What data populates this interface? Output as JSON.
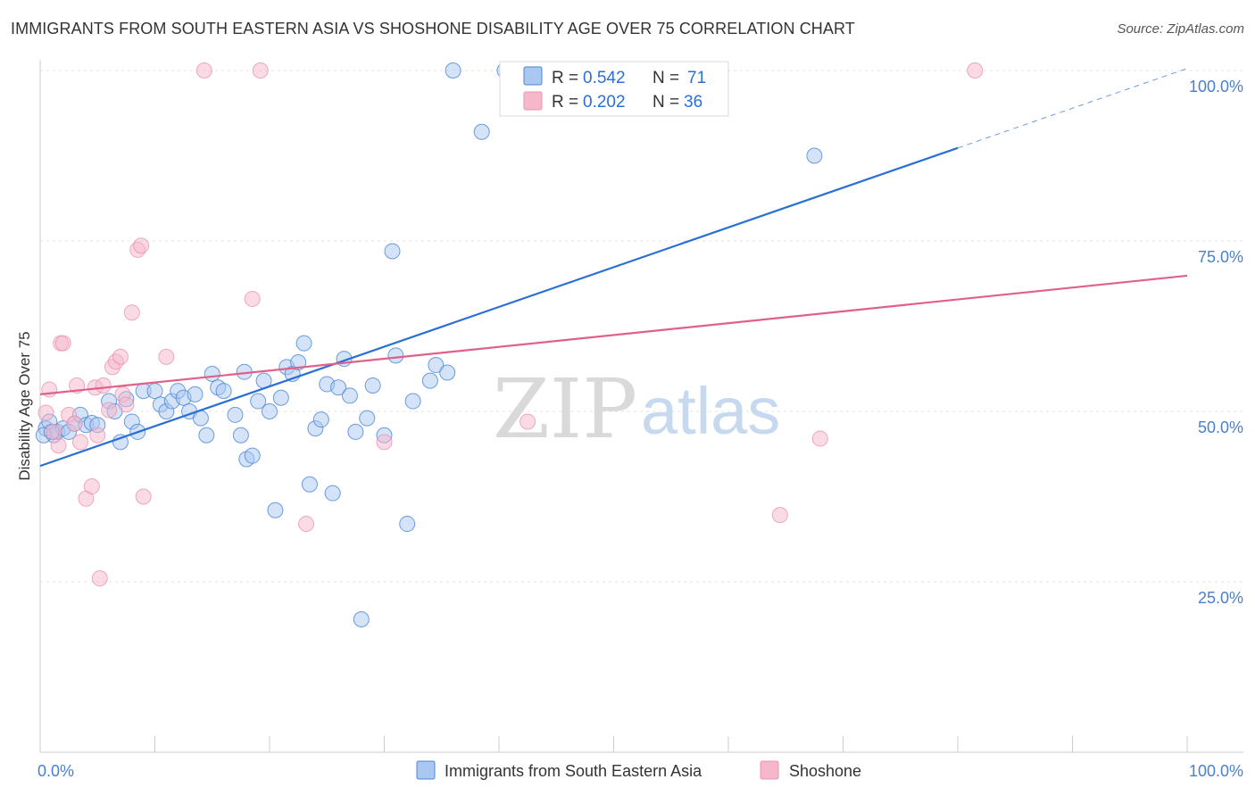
{
  "header": {
    "title": "IMMIGRANTS FROM SOUTH EASTERN ASIA VS SHOSHONE DISABILITY AGE OVER 75 CORRELATION CHART",
    "source": "Source: ZipAtlas.com"
  },
  "watermark": {
    "zip": "ZIP",
    "atlas": "atlas"
  },
  "legend": {
    "r_label": "R =",
    "n_label": "N =",
    "rows": [
      {
        "r": "0.542",
        "n": "71",
        "color": "#aac8ef"
      },
      {
        "r": "0.202",
        "n": "36",
        "color": "#f5b8cb"
      }
    ]
  },
  "chart_data": {
    "type": "scatter",
    "title": "IMMIGRANTS FROM SOUTH EASTERN ASIA VS SHOSHONE DISABILITY AGE OVER 75 CORRELATION CHART",
    "xlabel": "",
    "ylabel": "Disability Age Over 75",
    "xlim": [
      0,
      100
    ],
    "ylim": [
      0,
      100
    ],
    "x_tick_labels": [
      "0.0%",
      "100.0%"
    ],
    "y_tick_labels": [
      "25.0%",
      "50.0%",
      "75.0%",
      "100.0%"
    ],
    "y_ticks": [
      25,
      50,
      75,
      100
    ],
    "grid": true,
    "legend_position": "top-center",
    "series": [
      {
        "name": "Immigrants from South Eastern Asia",
        "color": "#4a86d8",
        "fill": "#aac8ef",
        "trend": {
          "r": 0.542,
          "n": 71,
          "x0": 0,
          "y0": 42.0,
          "x1": 100,
          "y1": 100.3,
          "solid_until_x": 80,
          "line_color": "#2a6fd6"
        },
        "points": [
          [
            0.5,
            47.5
          ],
          [
            0.8,
            48.5
          ],
          [
            1.2,
            46.5
          ],
          [
            1.5,
            47
          ],
          [
            2.0,
            47.5
          ],
          [
            2.5,
            47
          ],
          [
            3.0,
            48.2
          ],
          [
            3.5,
            49.5
          ],
          [
            4.0,
            48
          ],
          [
            4.5,
            48.3
          ],
          [
            5.0,
            48
          ],
          [
            6.0,
            51.5
          ],
          [
            6.5,
            50
          ],
          [
            7.0,
            45.5
          ],
          [
            7.5,
            51.8
          ],
          [
            8.0,
            48.5
          ],
          [
            8.5,
            47
          ],
          [
            9.0,
            53
          ],
          [
            10.0,
            53
          ],
          [
            10.5,
            51
          ],
          [
            11.0,
            50
          ],
          [
            11.5,
            51.5
          ],
          [
            12.0,
            53
          ],
          [
            12.5,
            52
          ],
          [
            13.0,
            50
          ],
          [
            13.5,
            52.5
          ],
          [
            14.0,
            49
          ],
          [
            14.5,
            46.5
          ],
          [
            15.0,
            55.5
          ],
          [
            15.5,
            53.5
          ],
          [
            16.0,
            53
          ],
          [
            17.0,
            49.5
          ],
          [
            17.5,
            46.5
          ],
          [
            17.8,
            55.8
          ],
          [
            18.0,
            43
          ],
          [
            18.5,
            43.5
          ],
          [
            19.0,
            51.5
          ],
          [
            19.5,
            54.5
          ],
          [
            20.0,
            50
          ],
          [
            20.5,
            35.5
          ],
          [
            21.0,
            52
          ],
          [
            21.5,
            56.5
          ],
          [
            22.0,
            55.5
          ],
          [
            22.5,
            57.2
          ],
          [
            23.0,
            60
          ],
          [
            23.5,
            39.3
          ],
          [
            24.0,
            47.5
          ],
          [
            24.5,
            48.8
          ],
          [
            25.0,
            54
          ],
          [
            25.5,
            38
          ],
          [
            26.0,
            53.5
          ],
          [
            26.5,
            57.7
          ],
          [
            27.0,
            52.3
          ],
          [
            27.5,
            47
          ],
          [
            28.0,
            19.5
          ],
          [
            28.5,
            49
          ],
          [
            29.0,
            53.8
          ],
          [
            30.0,
            46.5
          ],
          [
            31.0,
            58.2
          ],
          [
            32.0,
            33.5
          ],
          [
            32.5,
            51.5
          ],
          [
            34.0,
            54.5
          ],
          [
            34.5,
            56.8
          ],
          [
            35.5,
            55.7
          ],
          [
            36.0,
            100
          ],
          [
            38.5,
            91
          ],
          [
            40.5,
            100
          ],
          [
            30.7,
            73.5
          ],
          [
            67.5,
            87.5
          ],
          [
            0.3,
            46.5
          ],
          [
            1.0,
            47
          ]
        ]
      },
      {
        "name": "Shoshone",
        "color": "#e995b0",
        "fill": "#f5b8cb",
        "trend": {
          "r": 0.202,
          "n": 36,
          "x0": 0,
          "y0": 52.5,
          "x1": 100,
          "y1": 69.9,
          "line_color": "#e0608a"
        },
        "points": [
          [
            0.5,
            49.8
          ],
          [
            0.8,
            53.2
          ],
          [
            1.2,
            47
          ],
          [
            1.6,
            45
          ],
          [
            1.8,
            60
          ],
          [
            2.0,
            60
          ],
          [
            2.5,
            49.5
          ],
          [
            3.0,
            48.2
          ],
          [
            3.2,
            53.8
          ],
          [
            3.5,
            45.5
          ],
          [
            4.0,
            37.2
          ],
          [
            4.5,
            39
          ],
          [
            4.8,
            53.5
          ],
          [
            5.0,
            46.5
          ],
          [
            5.2,
            25.5
          ],
          [
            5.5,
            53.8
          ],
          [
            6.0,
            50.2
          ],
          [
            6.3,
            56.5
          ],
          [
            6.6,
            57.3
          ],
          [
            7.0,
            58
          ],
          [
            7.2,
            52.5
          ],
          [
            7.5,
            51
          ],
          [
            8.0,
            64.5
          ],
          [
            8.5,
            73.7
          ],
          [
            8.8,
            74.3
          ],
          [
            9.0,
            37.5
          ],
          [
            11.0,
            58
          ],
          [
            14.3,
            100
          ],
          [
            19.2,
            100
          ],
          [
            18.5,
            66.5
          ],
          [
            23.2,
            33.5
          ],
          [
            30.0,
            45.5
          ],
          [
            42.5,
            48.5
          ],
          [
            64.5,
            34.8
          ],
          [
            68.0,
            46
          ],
          [
            81.5,
            100
          ]
        ]
      }
    ]
  }
}
